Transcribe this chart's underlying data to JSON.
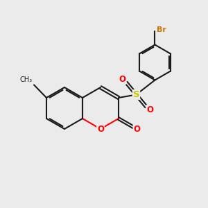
{
  "bg_color": "#ebebeb",
  "bond_color": "#1a1a1a",
  "bond_lw": 1.5,
  "S_color": "#c8c800",
  "O_color": "#ff0000",
  "Br_color": "#c87800",
  "font_size": 8.5,
  "dpi": 100,
  "figsize": [
    3.0,
    3.0
  ],
  "xlim": [
    0,
    10
  ],
  "ylim": [
    0,
    10
  ]
}
